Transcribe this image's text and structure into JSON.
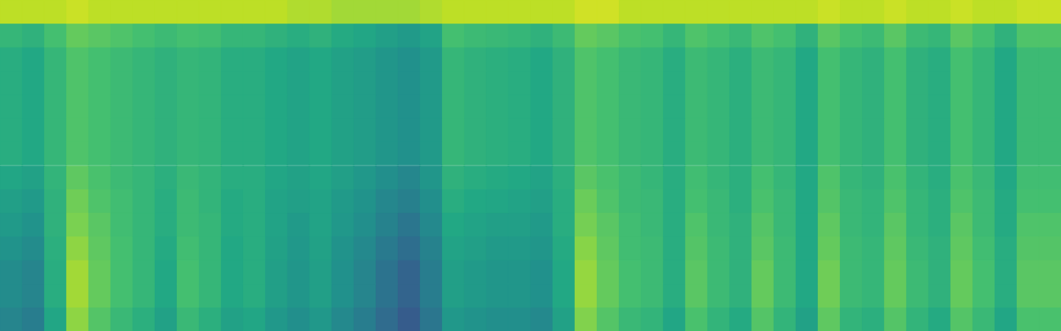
{
  "chart_data": {
    "type": "heatmap",
    "color": "viridis",
    "tick_labels": false,
    "grid": false,
    "color_range": [
      0,
      1
    ],
    "cells": [
      [
        0.9,
        0.9,
        0.9,
        0.92,
        0.9,
        0.9,
        0.9,
        0.9,
        0.9,
        0.9,
        0.9,
        0.9,
        0.9,
        0.88,
        0.88,
        0.86,
        0.86,
        0.86,
        0.86,
        0.88,
        0.9,
        0.9,
        0.9,
        0.9,
        0.9,
        0.9,
        0.93,
        0.93,
        0.9,
        0.9,
        0.9,
        0.9,
        0.9,
        0.9,
        0.9,
        0.9,
        0.9,
        0.92,
        0.9,
        0.9,
        0.92,
        0.9,
        0.9,
        0.92,
        0.9,
        0.9,
        0.92,
        0.92
      ],
      [
        0.66,
        0.64,
        0.7,
        0.76,
        0.74,
        0.72,
        0.7,
        0.68,
        0.7,
        0.69,
        0.66,
        0.66,
        0.64,
        0.62,
        0.64,
        0.61,
        0.59,
        0.56,
        0.54,
        0.58,
        0.7,
        0.68,
        0.67,
        0.66,
        0.64,
        0.68,
        0.76,
        0.74,
        0.71,
        0.7,
        0.66,
        0.72,
        0.7,
        0.67,
        0.72,
        0.7,
        0.64,
        0.74,
        0.7,
        0.68,
        0.74,
        0.68,
        0.66,
        0.74,
        0.7,
        0.64,
        0.72,
        0.72
      ],
      [
        0.62,
        0.6,
        0.66,
        0.72,
        0.7,
        0.68,
        0.66,
        0.64,
        0.66,
        0.65,
        0.62,
        0.62,
        0.6,
        0.58,
        0.6,
        0.57,
        0.55,
        0.52,
        0.5,
        0.54,
        0.66,
        0.64,
        0.63,
        0.62,
        0.6,
        0.64,
        0.72,
        0.7,
        0.67,
        0.66,
        0.62,
        0.68,
        0.66,
        0.63,
        0.68,
        0.66,
        0.6,
        0.7,
        0.66,
        0.64,
        0.7,
        0.64,
        0.62,
        0.7,
        0.66,
        0.6,
        0.68,
        0.68
      ],
      [
        0.62,
        0.6,
        0.66,
        0.72,
        0.7,
        0.68,
        0.66,
        0.64,
        0.66,
        0.65,
        0.62,
        0.62,
        0.6,
        0.58,
        0.6,
        0.57,
        0.55,
        0.52,
        0.5,
        0.54,
        0.66,
        0.64,
        0.63,
        0.62,
        0.6,
        0.64,
        0.72,
        0.7,
        0.67,
        0.66,
        0.62,
        0.68,
        0.66,
        0.63,
        0.68,
        0.66,
        0.6,
        0.7,
        0.66,
        0.64,
        0.7,
        0.64,
        0.62,
        0.7,
        0.66,
        0.6,
        0.68,
        0.68
      ],
      [
        0.62,
        0.6,
        0.66,
        0.72,
        0.7,
        0.68,
        0.66,
        0.64,
        0.66,
        0.65,
        0.62,
        0.62,
        0.6,
        0.58,
        0.6,
        0.57,
        0.55,
        0.52,
        0.5,
        0.54,
        0.66,
        0.64,
        0.63,
        0.62,
        0.6,
        0.64,
        0.72,
        0.7,
        0.67,
        0.66,
        0.62,
        0.68,
        0.66,
        0.63,
        0.68,
        0.66,
        0.6,
        0.7,
        0.66,
        0.64,
        0.7,
        0.64,
        0.62,
        0.7,
        0.66,
        0.6,
        0.68,
        0.68
      ],
      [
        0.62,
        0.6,
        0.66,
        0.72,
        0.7,
        0.68,
        0.66,
        0.64,
        0.66,
        0.65,
        0.62,
        0.62,
        0.6,
        0.58,
        0.6,
        0.57,
        0.55,
        0.52,
        0.5,
        0.54,
        0.66,
        0.64,
        0.63,
        0.62,
        0.6,
        0.64,
        0.72,
        0.7,
        0.67,
        0.66,
        0.62,
        0.68,
        0.66,
        0.63,
        0.68,
        0.66,
        0.6,
        0.7,
        0.66,
        0.64,
        0.7,
        0.64,
        0.62,
        0.7,
        0.66,
        0.6,
        0.68,
        0.68
      ],
      [
        0.62,
        0.6,
        0.66,
        0.72,
        0.7,
        0.68,
        0.66,
        0.64,
        0.66,
        0.65,
        0.62,
        0.62,
        0.6,
        0.58,
        0.6,
        0.57,
        0.55,
        0.52,
        0.5,
        0.54,
        0.66,
        0.64,
        0.63,
        0.62,
        0.6,
        0.64,
        0.72,
        0.7,
        0.67,
        0.66,
        0.62,
        0.68,
        0.66,
        0.63,
        0.68,
        0.66,
        0.6,
        0.7,
        0.66,
        0.64,
        0.7,
        0.64,
        0.62,
        0.7,
        0.66,
        0.6,
        0.68,
        0.68
      ],
      [
        0.59,
        0.57,
        0.65,
        0.75,
        0.71,
        0.68,
        0.66,
        0.63,
        0.67,
        0.65,
        0.62,
        0.62,
        0.59,
        0.57,
        0.59,
        0.56,
        0.53,
        0.49,
        0.46,
        0.52,
        0.64,
        0.62,
        0.61,
        0.6,
        0.58,
        0.63,
        0.74,
        0.71,
        0.68,
        0.66,
        0.62,
        0.69,
        0.66,
        0.63,
        0.7,
        0.66,
        0.6,
        0.72,
        0.66,
        0.64,
        0.71,
        0.65,
        0.62,
        0.71,
        0.67,
        0.6,
        0.69,
        0.69
      ],
      [
        0.56,
        0.54,
        0.64,
        0.78,
        0.72,
        0.69,
        0.66,
        0.62,
        0.68,
        0.65,
        0.61,
        0.62,
        0.58,
        0.56,
        0.58,
        0.54,
        0.51,
        0.46,
        0.43,
        0.49,
        0.62,
        0.6,
        0.59,
        0.58,
        0.56,
        0.62,
        0.77,
        0.72,
        0.68,
        0.67,
        0.62,
        0.7,
        0.67,
        0.63,
        0.71,
        0.67,
        0.6,
        0.73,
        0.67,
        0.65,
        0.72,
        0.66,
        0.63,
        0.72,
        0.68,
        0.61,
        0.7,
        0.7
      ],
      [
        0.54,
        0.51,
        0.64,
        0.8,
        0.74,
        0.69,
        0.66,
        0.62,
        0.68,
        0.66,
        0.61,
        0.62,
        0.58,
        0.54,
        0.58,
        0.53,
        0.49,
        0.44,
        0.39,
        0.47,
        0.6,
        0.58,
        0.56,
        0.56,
        0.54,
        0.62,
        0.79,
        0.74,
        0.69,
        0.67,
        0.62,
        0.72,
        0.67,
        0.64,
        0.73,
        0.67,
        0.6,
        0.75,
        0.67,
        0.65,
        0.74,
        0.66,
        0.63,
        0.74,
        0.68,
        0.61,
        0.72,
        0.72
      ],
      [
        0.51,
        0.48,
        0.63,
        0.83,
        0.75,
        0.7,
        0.66,
        0.61,
        0.69,
        0.66,
        0.6,
        0.62,
        0.57,
        0.53,
        0.57,
        0.51,
        0.47,
        0.41,
        0.36,
        0.44,
        0.58,
        0.56,
        0.54,
        0.54,
        0.52,
        0.61,
        0.82,
        0.75,
        0.69,
        0.68,
        0.62,
        0.73,
        0.68,
        0.64,
        0.74,
        0.68,
        0.6,
        0.76,
        0.68,
        0.66,
        0.75,
        0.67,
        0.64,
        0.75,
        0.69,
        0.62,
        0.73,
        0.73
      ],
      [
        0.48,
        0.45,
        0.62,
        0.86,
        0.76,
        0.7,
        0.66,
        0.6,
        0.7,
        0.66,
        0.6,
        0.62,
        0.56,
        0.52,
        0.56,
        0.5,
        0.45,
        0.38,
        0.32,
        0.42,
        0.56,
        0.54,
        0.52,
        0.52,
        0.5,
        0.6,
        0.84,
        0.76,
        0.7,
        0.68,
        0.62,
        0.74,
        0.68,
        0.64,
        0.76,
        0.68,
        0.6,
        0.78,
        0.68,
        0.66,
        0.76,
        0.68,
        0.64,
        0.76,
        0.7,
        0.62,
        0.74,
        0.74
      ],
      [
        0.48,
        0.45,
        0.62,
        0.86,
        0.76,
        0.7,
        0.66,
        0.6,
        0.7,
        0.66,
        0.6,
        0.62,
        0.56,
        0.52,
        0.56,
        0.5,
        0.45,
        0.38,
        0.32,
        0.42,
        0.56,
        0.54,
        0.52,
        0.52,
        0.5,
        0.6,
        0.84,
        0.76,
        0.7,
        0.68,
        0.62,
        0.74,
        0.68,
        0.64,
        0.76,
        0.68,
        0.6,
        0.78,
        0.68,
        0.66,
        0.76,
        0.68,
        0.64,
        0.76,
        0.7,
        0.62,
        0.74,
        0.74
      ],
      [
        0.45,
        0.42,
        0.59,
        0.83,
        0.73,
        0.67,
        0.63,
        0.57,
        0.67,
        0.63,
        0.57,
        0.59,
        0.53,
        0.49,
        0.53,
        0.47,
        0.42,
        0.35,
        0.29,
        0.39,
        0.53,
        0.51,
        0.49,
        0.49,
        0.47,
        0.57,
        0.81,
        0.73,
        0.67,
        0.65,
        0.59,
        0.71,
        0.65,
        0.61,
        0.73,
        0.65,
        0.57,
        0.75,
        0.65,
        0.63,
        0.73,
        0.65,
        0.61,
        0.73,
        0.67,
        0.59,
        0.71,
        0.71
      ]
    ]
  }
}
